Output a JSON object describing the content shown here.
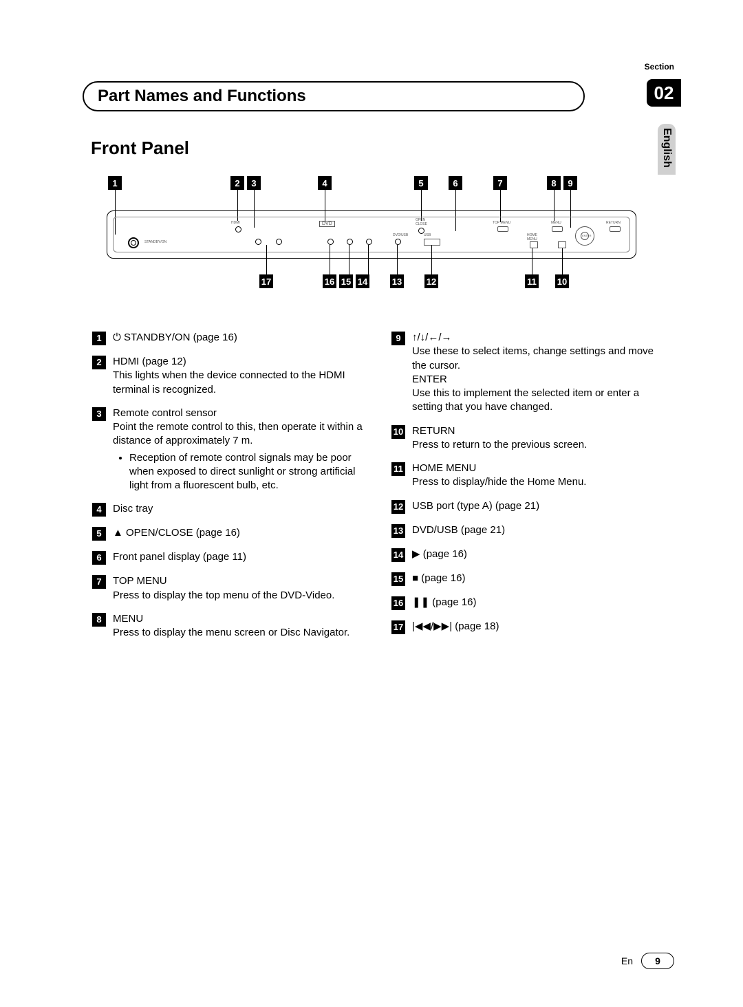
{
  "section_label": "Section",
  "chapter_number": "02",
  "language_tab": "English",
  "title": "Part Names and Functions",
  "subheading": "Front Panel",
  "callouts_top": [
    "1",
    "2",
    "3",
    "4",
    "5",
    "6",
    "7",
    "8",
    "9"
  ],
  "callouts_bottom": [
    "17",
    "16",
    "15",
    "14",
    "13",
    "12",
    "11",
    "10"
  ],
  "left_items": [
    {
      "num": "1",
      "title": "⏻ STANDBY/ON (page 16)",
      "body": ""
    },
    {
      "num": "2",
      "title": "HDMI (page 12)",
      "body": "This lights when the device connected to the HDMI terminal is recognized."
    },
    {
      "num": "3",
      "title": "Remote control sensor",
      "body": "Point the remote control to this, then operate it within a distance of approximately 7 m.",
      "bullets": [
        "Reception of remote control signals may be poor when exposed to direct sunlight or strong artificial light from a fluorescent bulb, etc."
      ]
    },
    {
      "num": "4",
      "title": "Disc tray",
      "body": ""
    },
    {
      "num": "5",
      "title": "▲ OPEN/CLOSE (page 16)",
      "body": ""
    },
    {
      "num": "6",
      "title": "Front panel display (page 11)",
      "body": ""
    },
    {
      "num": "7",
      "title": "TOP MENU",
      "body": "Press to display the top menu of the DVD-Video."
    },
    {
      "num": "8",
      "title": "MENU",
      "body": "Press to display the menu screen or Disc Navigator."
    }
  ],
  "right_items": [
    {
      "num": "9",
      "title": "↑/↓/←/→",
      "body": "Use these to select items, change settings and move the cursor.",
      "extra_title": "ENTER",
      "extra_body": "Use this to implement the selected item or enter a setting that you have changed."
    },
    {
      "num": "10",
      "title": "RETURN",
      "body": "Press to return to the previous screen."
    },
    {
      "num": "11",
      "title": "HOME MENU",
      "body": "Press to display/hide the Home Menu."
    },
    {
      "num": "12",
      "title": "USB port (type A) (page 21)",
      "body": ""
    },
    {
      "num": "13",
      "title": "DVD/USB (page 21)",
      "body": ""
    },
    {
      "num": "14",
      "title": "▶ (page 16)",
      "body": ""
    },
    {
      "num": "15",
      "title": "■ (page 16)",
      "body": ""
    },
    {
      "num": "16",
      "title": "❚❚ (page 16)",
      "body": ""
    },
    {
      "num": "17",
      "title": "|◀◀/▶▶| (page 18)",
      "body": ""
    }
  ],
  "footer_lang": "En",
  "footer_page": "9"
}
